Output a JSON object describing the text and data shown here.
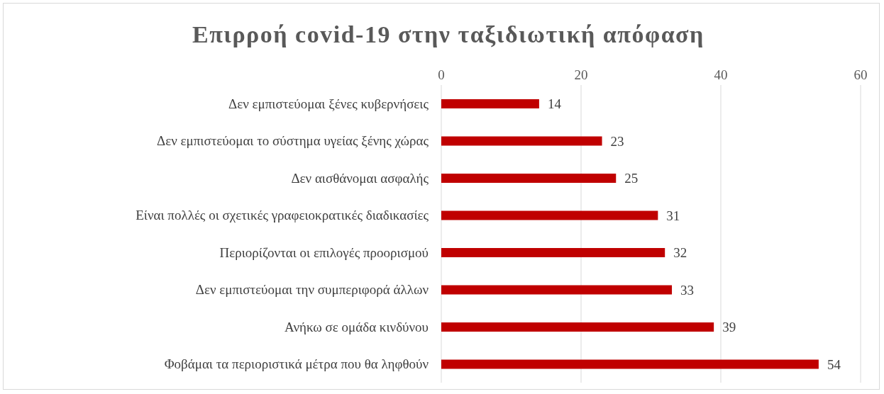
{
  "chart_data": {
    "type": "bar",
    "orientation": "horizontal",
    "title": "Επιρροή covid-19 στην ταξιδιωτική απόφαση",
    "categories": [
      "Δεν εμπιστεύομαι ξένες κυβερνήσεις",
      "Δεν εμπιστεύομαι το σύστημα υγείας ξένης χώρας",
      "Δεν αισθάνομαι ασφαλής",
      "Είναι πολλές οι σχετικές γραφειοκρατικές διαδικασίες",
      "Περιορίζονται οι επιλογές προορισμού",
      "Δεν εμπιστεύομαι την συμπεριφορά άλλων",
      "Ανήκω σε ομάδα κινδύνου",
      "Φοβάμαι τα περιοριστικά μέτρα που θα ληφθούν"
    ],
    "values": [
      14,
      23,
      25,
      31,
      32,
      33,
      39,
      54
    ],
    "color": "#c00000",
    "xlim": [
      0,
      60
    ],
    "xticks": [
      0,
      20,
      40,
      60
    ],
    "grid": "x",
    "data_labels": true
  }
}
